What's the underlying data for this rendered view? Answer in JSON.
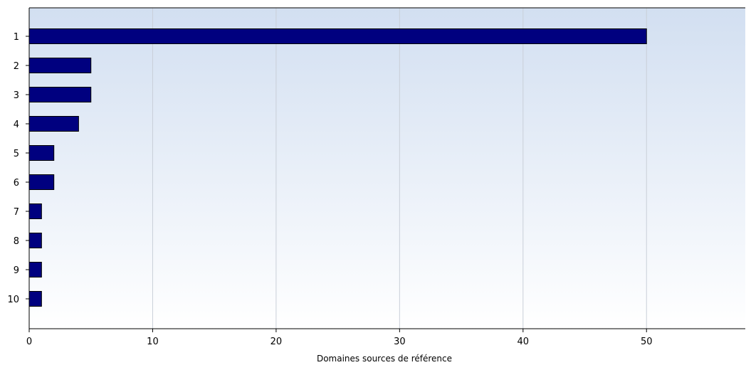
{
  "chart_data": {
    "type": "bar",
    "orientation": "horizontal",
    "categories": [
      "1",
      "2",
      "3",
      "4",
      "5",
      "6",
      "7",
      "8",
      "9",
      "10"
    ],
    "values": [
      50,
      5,
      5,
      4,
      2,
      2,
      1,
      1,
      1,
      1
    ],
    "xlabel": "Domaines sources de référence",
    "ylabel": "",
    "xlim": [
      0,
      58
    ],
    "xticks": [
      0,
      10,
      20,
      30,
      40,
      50
    ],
    "grid": "vertical",
    "legend": "none",
    "bar_color": "#00007f",
    "background_gradient": [
      "#d2dff1",
      "#ffffff"
    ]
  }
}
